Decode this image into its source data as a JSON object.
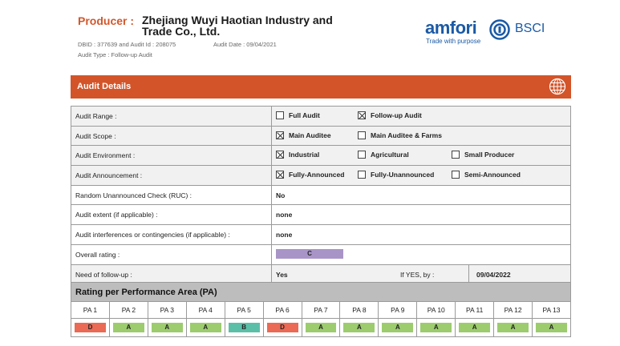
{
  "header": {
    "producer_label": "Producer :",
    "producer_name": "Zhejiang Wuyi Haotian Industry and Trade Co., Ltd.",
    "ids": "DBID : 377639 and Audit Id : 208075",
    "audit_date": "Audit Date : 09/04/2021",
    "audit_type": "Audit Type : Follow-up Audit"
  },
  "logo": {
    "word": "amfori",
    "bsci": "BSCI",
    "tagline": "Trade with purpose"
  },
  "section": {
    "title": "Audit Details"
  },
  "details": {
    "range_label": "Audit Range :",
    "range_opts": [
      "Full Audit",
      "Follow-up Audit"
    ],
    "scope_label": "Audit Scope :",
    "scope_opts": [
      "Main Auditee",
      "Main Auditee & Farms"
    ],
    "env_label": "Audit Environment :",
    "env_opts": [
      "Industrial",
      "Agricultural",
      "Small Producer"
    ],
    "ann_label": "Audit Announcement :",
    "ann_opts": [
      "Fully-Announced",
      "Fully-Unannounced",
      "Semi-Announced"
    ],
    "ruc_label": "Random Unannounced Check (RUC) :",
    "ruc_value": "No",
    "extent_label": "Audit extent (if applicable) :",
    "extent_value": "none",
    "interf_label": "Audit interferences or contingencies (if applicable) :",
    "interf_value": "none",
    "rating_label": "Overall rating :",
    "rating_value": "C",
    "followup_label": "Need of follow-up :",
    "followup_value": "Yes",
    "ifyes_label": "If YES, by :",
    "ifyes_date": "09/04/2022"
  },
  "checked": {
    "range": "Follow-up Audit",
    "scope": "Main Auditee",
    "env": "Industrial",
    "ann": "Fully-Announced"
  },
  "pa": {
    "title": "Rating per Performance Area (PA)",
    "labels": [
      "PA 1",
      "PA 2",
      "PA 3",
      "PA 4",
      "PA 5",
      "PA 6",
      "PA 7",
      "PA 8",
      "PA 9",
      "PA 10",
      "PA 11",
      "PA 12",
      "PA 13"
    ],
    "grades": [
      "D",
      "A",
      "A",
      "A",
      "B",
      "D",
      "A",
      "A",
      "A",
      "A",
      "A",
      "A",
      "A"
    ]
  },
  "colors": {
    "accent": "#d35429",
    "rating_c": "#a994c8",
    "grade_A": "#9ccc6e",
    "grade_B": "#5bbfa8",
    "grade_D": "#ea6a55"
  }
}
